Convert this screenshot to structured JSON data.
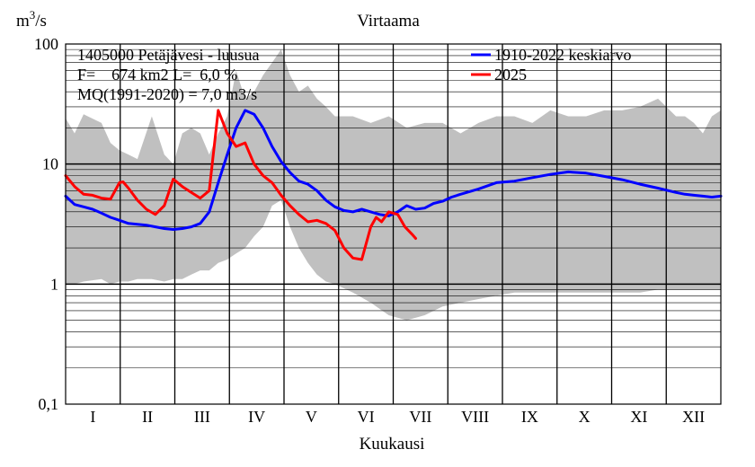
{
  "chart_data": {
    "type": "area",
    "title": "Virtaama",
    "ylabel": "m3/s",
    "ylabel_parts": {
      "base": "m",
      "sup": "3",
      "rest": "/s"
    },
    "xlabel": "Kuukausi",
    "yscale": "log",
    "ylim": [
      0.1,
      100
    ],
    "ytick_labels": [
      "100",
      "10",
      "1",
      "0,1"
    ],
    "xlim_day": [
      0,
      365
    ],
    "categories": [
      "I",
      "II",
      "III",
      "IV",
      "V",
      "VI",
      "VII",
      "VIII",
      "IX",
      "X",
      "XI",
      "XII"
    ],
    "grid": true,
    "legend_position": "top-right",
    "info": [
      "1405000 Petäjävesi - luusua",
      "F=    674 km2 L=  6,0 %",
      "MQ(1991-2020) = 7,0 m3/s"
    ],
    "colors": {
      "envelope": "#c0c0c0",
      "mean": "#0000ff",
      "year": "#ff0000",
      "grid": "#000000"
    },
    "envelope": {
      "name": "",
      "x": [
        0,
        5,
        10,
        20,
        25,
        30,
        35,
        40,
        48,
        55,
        60,
        65,
        70,
        75,
        80,
        85,
        90,
        95,
        100,
        105,
        110,
        115,
        120,
        125,
        130,
        135,
        140,
        145,
        150,
        160,
        170,
        180,
        190,
        200,
        210,
        220,
        230,
        240,
        250,
        260,
        270,
        280,
        290,
        300,
        310,
        320,
        330,
        340,
        345,
        350,
        355,
        360,
        365
      ],
      "upper": [
        24,
        18,
        26,
        22,
        15,
        13,
        12,
        11,
        25,
        12,
        10,
        18,
        20,
        18,
        12,
        18,
        25,
        60,
        35,
        40,
        55,
        70,
        90,
        55,
        40,
        45,
        35,
        30,
        25,
        25,
        22,
        25,
        20,
        22,
        22,
        18,
        22,
        25,
        25,
        22,
        28,
        25,
        25,
        28,
        28,
        30,
        35,
        25,
        25,
        22,
        18,
        25,
        28
      ],
      "lower": [
        1.0,
        1.0,
        1.05,
        1.1,
        1.0,
        1.05,
        1.05,
        1.1,
        1.1,
        1.05,
        1.1,
        1.1,
        1.2,
        1.3,
        1.3,
        1.5,
        1.6,
        1.8,
        2.0,
        2.5,
        3.0,
        4.5,
        5.0,
        3.0,
        2.0,
        1.5,
        1.2,
        1.05,
        1.0,
        0.85,
        0.7,
        0.55,
        0.5,
        0.55,
        0.65,
        0.7,
        0.75,
        0.8,
        0.85,
        0.85,
        0.85,
        0.85,
        0.85,
        0.85,
        0.85,
        0.85,
        0.9,
        0.9,
        0.9,
        0.9,
        0.9,
        0.9,
        0.9
      ]
    },
    "series": [
      {
        "name": "1910-2022 keskiarvo",
        "color": "#0000ff",
        "x": [
          0,
          5,
          10,
          15,
          20,
          25,
          30,
          35,
          40,
          45,
          50,
          55,
          60,
          65,
          70,
          75,
          80,
          85,
          90,
          95,
          100,
          105,
          110,
          115,
          120,
          125,
          130,
          135,
          140,
          145,
          150,
          155,
          160,
          165,
          170,
          175,
          180,
          185,
          190,
          195,
          200,
          205,
          210,
          215,
          220,
          230,
          240,
          250,
          260,
          270,
          280,
          290,
          300,
          310,
          320,
          330,
          340,
          345,
          350,
          355,
          360,
          365
        ],
        "values": [
          5.4,
          4.6,
          4.4,
          4.2,
          3.9,
          3.6,
          3.4,
          3.2,
          3.15,
          3.1,
          3.0,
          2.9,
          2.85,
          2.9,
          3.0,
          3.2,
          4.0,
          7.0,
          12.0,
          20.0,
          28.0,
          26.0,
          20.0,
          14.0,
          10.5,
          8.5,
          7.2,
          6.8,
          6.0,
          5.0,
          4.4,
          4.1,
          4.0,
          4.2,
          4.0,
          3.8,
          3.7,
          4.0,
          4.5,
          4.2,
          4.3,
          4.7,
          4.9,
          5.3,
          5.6,
          6.2,
          7.0,
          7.2,
          7.7,
          8.2,
          8.6,
          8.4,
          7.9,
          7.4,
          6.8,
          6.3,
          5.8,
          5.6,
          5.5,
          5.4,
          5.3,
          5.4
        ]
      },
      {
        "name": "2025",
        "color": "#ff0000",
        "x": [
          0,
          5,
          10,
          15,
          20,
          25,
          30,
          32,
          35,
          40,
          45,
          50,
          55,
          60,
          65,
          70,
          75,
          80,
          85,
          90,
          95,
          100,
          105,
          110,
          115,
          120,
          125,
          130,
          135,
          140,
          145,
          150,
          155,
          160,
          165,
          170,
          173,
          176,
          180,
          185,
          189,
          193,
          195
        ],
        "values": [
          8.0,
          6.5,
          5.6,
          5.5,
          5.2,
          5.1,
          7.0,
          7.1,
          6.3,
          5.0,
          4.2,
          3.8,
          4.5,
          7.5,
          6.5,
          5.8,
          5.2,
          6.0,
          28.0,
          18.0,
          14.0,
          15.0,
          10.0,
          8.0,
          7.0,
          5.5,
          4.5,
          3.8,
          3.3,
          3.4,
          3.2,
          2.8,
          2.0,
          1.65,
          1.6,
          3.0,
          3.6,
          3.3,
          4.0,
          3.8,
          3.0,
          2.6,
          2.4
        ]
      }
    ]
  }
}
